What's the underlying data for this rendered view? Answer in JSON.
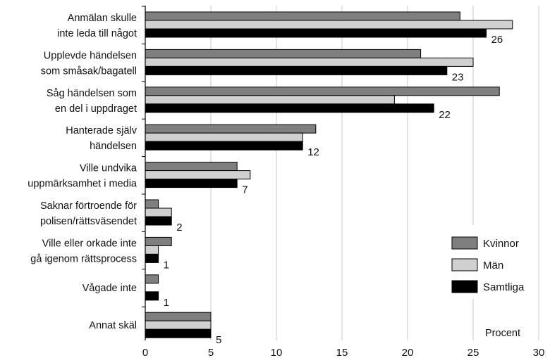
{
  "chart_data": {
    "type": "bar",
    "orientation": "horizontal",
    "categories": [
      [
        "Anmälan skulle",
        "inte leda till något"
      ],
      [
        "Upplevde händelsen",
        "som småsak/bagatell"
      ],
      [
        "Såg händelsen som",
        "en del i uppdraget"
      ],
      [
        "Hanterade själv",
        "händelsen"
      ],
      [
        "Ville undvika",
        "uppmärksamhet i media"
      ],
      [
        "Saknar förtroende för",
        "polisen/rättsväsendet"
      ],
      [
        "Ville eller orkade inte",
        "gå igenom rättsprocess"
      ],
      [
        "Vågade inte"
      ],
      [
        "Annat skäl"
      ]
    ],
    "series": [
      {
        "name": "Kvinnor",
        "color": "#7f7f7f",
        "values": [
          24,
          21,
          27,
          13,
          7,
          1,
          2,
          1,
          5
        ]
      },
      {
        "name": "Män",
        "color": "#d0d0d0",
        "values": [
          28,
          25,
          19,
          12,
          8,
          2,
          1,
          0,
          5
        ]
      },
      {
        "name": "Samtliga",
        "color": "#000000",
        "values": [
          26,
          23,
          22,
          12,
          7,
          2,
          1,
          1,
          5
        ]
      }
    ],
    "data_labels": [
      "26",
      "23",
      "22",
      "12",
      "7",
      "2",
      "1",
      "1",
      "5"
    ],
    "xlim": [
      0,
      30
    ],
    "xticks": [
      0,
      5,
      10,
      15,
      20,
      25,
      30
    ],
    "unit_label": "Procent",
    "grid": "vertical",
    "legend_position": "bottom-right",
    "title": "",
    "xlabel": "",
    "ylabel": ""
  }
}
